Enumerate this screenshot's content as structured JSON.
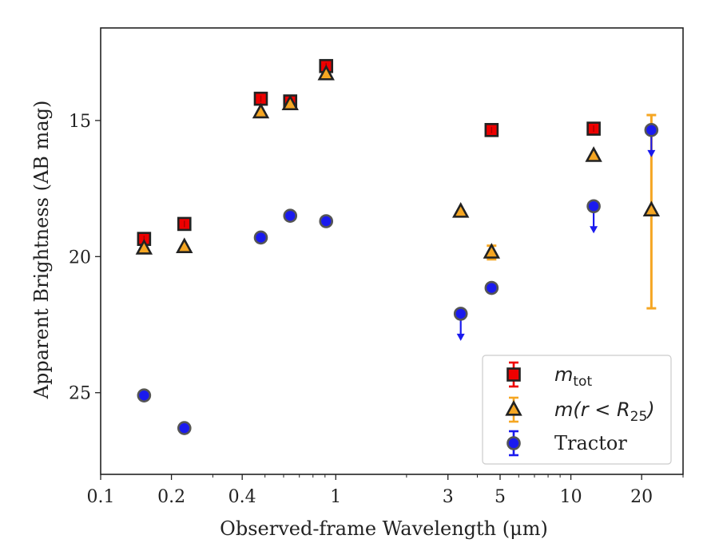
{
  "chart_data": {
    "type": "scatter",
    "xlabel": "Observed-frame Wavelength (μm)",
    "ylabel": "Apparent Brightness (AB mag)",
    "x_scale": "log",
    "xlim": [
      0.1,
      30
    ],
    "ylim": [
      28,
      11.6
    ],
    "y_inverted": true,
    "x_ticks": [
      0.1,
      0.2,
      0.4,
      1,
      3,
      5,
      10,
      20
    ],
    "x_tick_labels": [
      "0.1",
      "0.2",
      "0.4",
      "1",
      "3",
      "5",
      "10",
      "20"
    ],
    "y_ticks": [
      15,
      20,
      25
    ],
    "y_tick_labels": [
      "15",
      "20",
      "25"
    ],
    "legend_position": "lower right",
    "series": [
      {
        "name": "m_tot",
        "marker": "square",
        "color": "#ee0000",
        "points": [
          {
            "x": 0.153,
            "y": 19.35
          },
          {
            "x": 0.227,
            "y": 18.8
          },
          {
            "x": 0.48,
            "y": 14.2
          },
          {
            "x": 0.64,
            "y": 14.3
          },
          {
            "x": 0.91,
            "y": 13.0
          },
          {
            "x": 4.6,
            "y": 15.35
          },
          {
            "x": 12.5,
            "y": 15.3
          }
        ]
      },
      {
        "name": "m(r < R25)",
        "marker": "triangle",
        "color": "#f5a623",
        "points": [
          {
            "x": 0.153,
            "y": 19.7
          },
          {
            "x": 0.227,
            "y": 19.65
          },
          {
            "x": 0.48,
            "y": 14.7
          },
          {
            "x": 0.64,
            "y": 14.4
          },
          {
            "x": 0.91,
            "y": 13.3
          },
          {
            "x": 3.4,
            "y": 18.35
          },
          {
            "x": 4.6,
            "y": 19.85,
            "err": 0.25
          },
          {
            "x": 12.5,
            "y": 16.3
          },
          {
            "x": 22.0,
            "y": 18.3,
            "err_low": 3.6,
            "err_high": 3.5
          }
        ]
      },
      {
        "name": "Tractor",
        "marker": "circle",
        "color": "#1a1aee",
        "points": [
          {
            "x": 0.153,
            "y": 25.1
          },
          {
            "x": 0.227,
            "y": 26.3
          },
          {
            "x": 0.48,
            "y": 19.3
          },
          {
            "x": 0.64,
            "y": 18.5
          },
          {
            "x": 0.91,
            "y": 18.7
          },
          {
            "x": 3.4,
            "y": 22.1,
            "upper_limit": true
          },
          {
            "x": 4.6,
            "y": 21.15
          },
          {
            "x": 12.5,
            "y": 18.15,
            "upper_limit": true
          },
          {
            "x": 22.0,
            "y": 15.35,
            "upper_limit": true
          }
        ]
      }
    ]
  }
}
